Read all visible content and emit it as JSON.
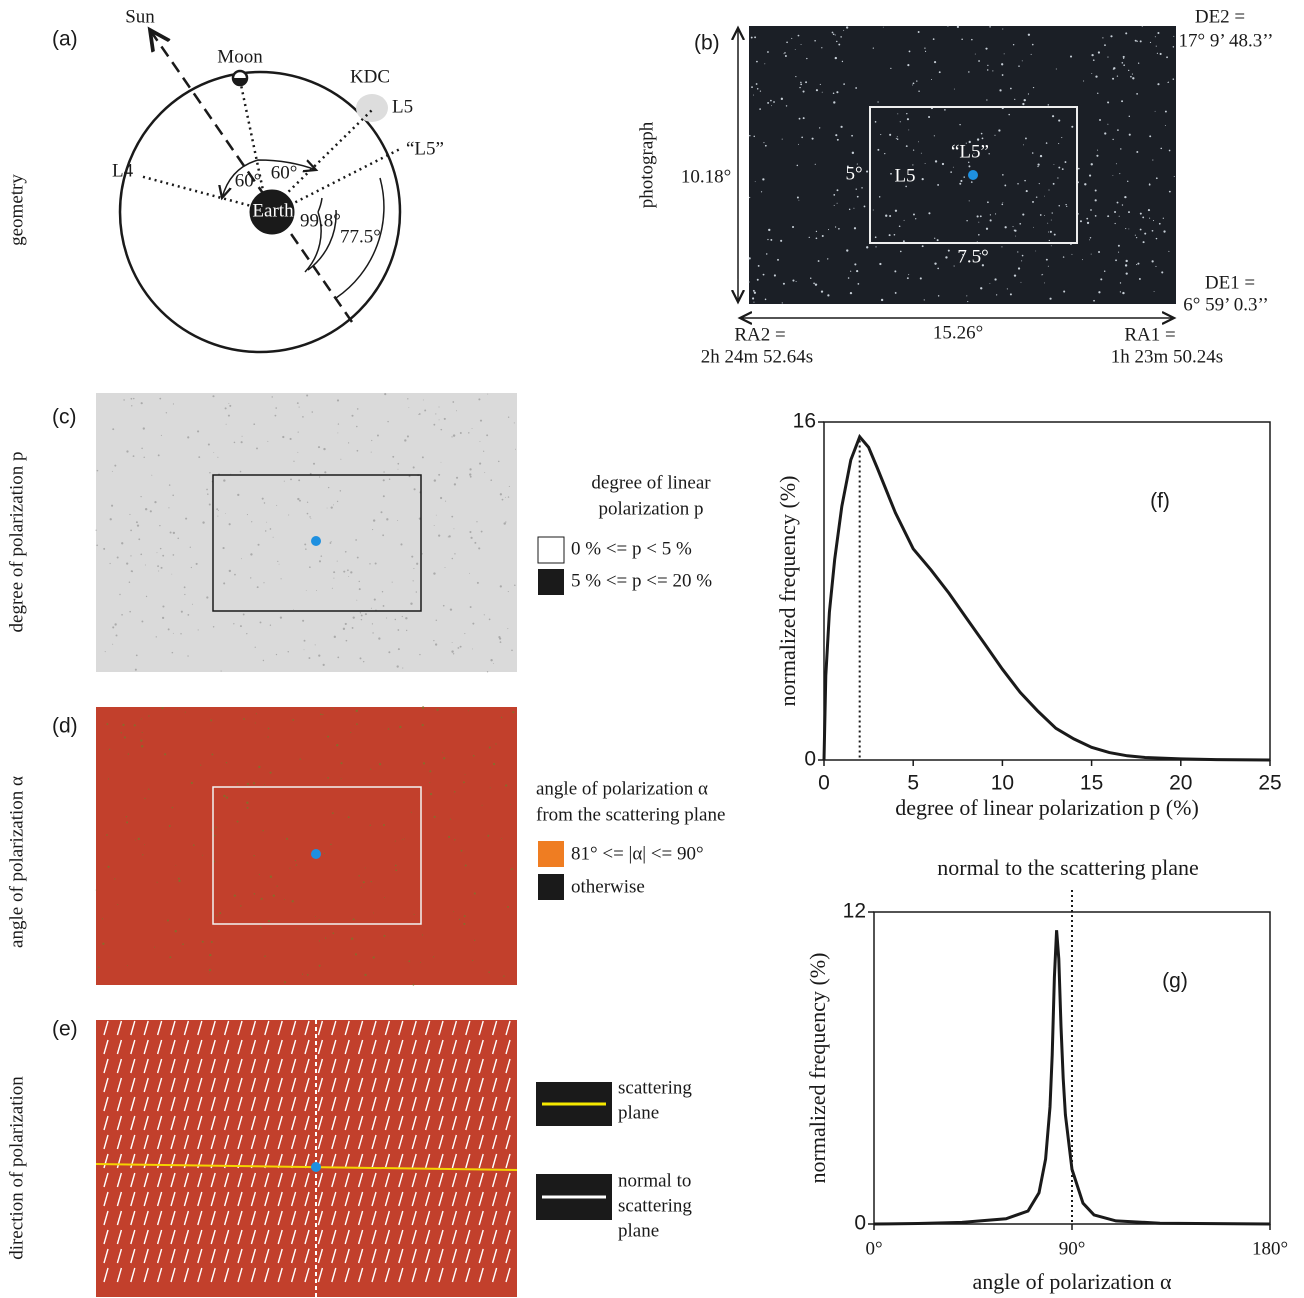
{
  "panel_a": {
    "label": "(a)",
    "side_label": "geometry",
    "sun": "Sun",
    "moon": "Moon",
    "kdc": "KDC",
    "l5": "L5",
    "l5_quoted": "“L5”",
    "l4": "L4",
    "angle_left": "60°",
    "angle_right": "60°",
    "earth": "Earth",
    "angle_large": "99.8°",
    "angle_small": "77.5°"
  },
  "panel_b": {
    "label": "(b)",
    "side_label": "photograph",
    "de2": "DE2 =",
    "de2_value": "17° 9’ 48.3’’",
    "height": "10.18°",
    "l5_quoted": "“L5”",
    "box_height": "5°",
    "l5": "L5",
    "box_width": "7.5°",
    "de1": "DE1 =",
    "de1_value": "6° 59’ 0.3’’",
    "ra2": "RA2 =",
    "ra2_value": "2h 24m 52.64s",
    "width": "15.26°",
    "ra1": "RA1 =",
    "ra1_value": "1h 23m 50.24s"
  },
  "panel_c": {
    "label": "(c)",
    "side_label": "degree of polarization p",
    "legend_title_1": "degree of linear",
    "legend_title_2": "polarization p",
    "legend_low": "0 % <= p < 5 %",
    "legend_high": "5 % <= p <= 20 %"
  },
  "panel_d": {
    "label": "(d)",
    "side_label": "angle of polarization α",
    "legend_title_1": "angle of polarization α",
    "legend_title_2": "from the scattering plane",
    "legend_in": "81° <= |α| <= 90°",
    "legend_other": "otherwise"
  },
  "panel_e": {
    "label": "(e)",
    "side_label": "direction of polarization",
    "legend_1a": "scattering",
    "legend_1b": "plane",
    "legend_2a": "normal to",
    "legend_2b": "scattering",
    "legend_2c": "plane"
  },
  "chart_data": [
    {
      "type": "line",
      "label": "(f)",
      "xlabel": "degree of linear polarization p (%)",
      "ylabel": "normalized frequency (%)",
      "color": "#1a1a1a",
      "x": [
        0,
        0.1,
        0.3,
        0.6,
        1,
        1.5,
        2,
        2.5,
        3,
        4,
        5,
        6,
        7,
        8,
        9,
        10,
        11,
        12,
        13,
        14,
        15,
        16,
        17,
        18,
        20,
        22,
        25
      ],
      "values": [
        0,
        4,
        7,
        9.5,
        12,
        14.2,
        15.3,
        14.8,
        13.8,
        11.7,
        10,
        9,
        7.9,
        6.7,
        5.5,
        4.3,
        3.2,
        2.3,
        1.5,
        1,
        0.6,
        0.35,
        0.2,
        0.12,
        0.05,
        0.02,
        0
      ],
      "reference_x": 2,
      "xlim": [
        0,
        25
      ],
      "xticks": [
        0,
        5,
        10,
        15,
        20,
        25
      ],
      "ylim": [
        0,
        16
      ],
      "yticks": [
        0,
        16
      ]
    },
    {
      "type": "line",
      "label": "(g)",
      "title": "normal to the scattering plane",
      "xlabel": "angle of polarization α",
      "ylabel": "normalized frequency (%)",
      "color": "#1a1a1a",
      "x": [
        0,
        20,
        40,
        60,
        70,
        75,
        78,
        80,
        81,
        82,
        83,
        84,
        85,
        86,
        87,
        90,
        95,
        100,
        110,
        130,
        180
      ],
      "values": [
        0,
        0.02,
        0.06,
        0.2,
        0.5,
        1.2,
        2.5,
        4.5,
        6.5,
        9.5,
        11.3,
        10.2,
        7.6,
        5.6,
        4.2,
        2.1,
        0.8,
        0.35,
        0.12,
        0.03,
        0
      ],
      "reference_x": 90,
      "xlim": [
        0,
        180
      ],
      "xticks": [
        {
          "value": 0,
          "label": "0°"
        },
        {
          "value": 90,
          "label": "90°"
        },
        {
          "value": 180,
          "label": "180°"
        }
      ],
      "ylim": [
        0,
        12
      ],
      "yticks": [
        0,
        12
      ]
    }
  ]
}
